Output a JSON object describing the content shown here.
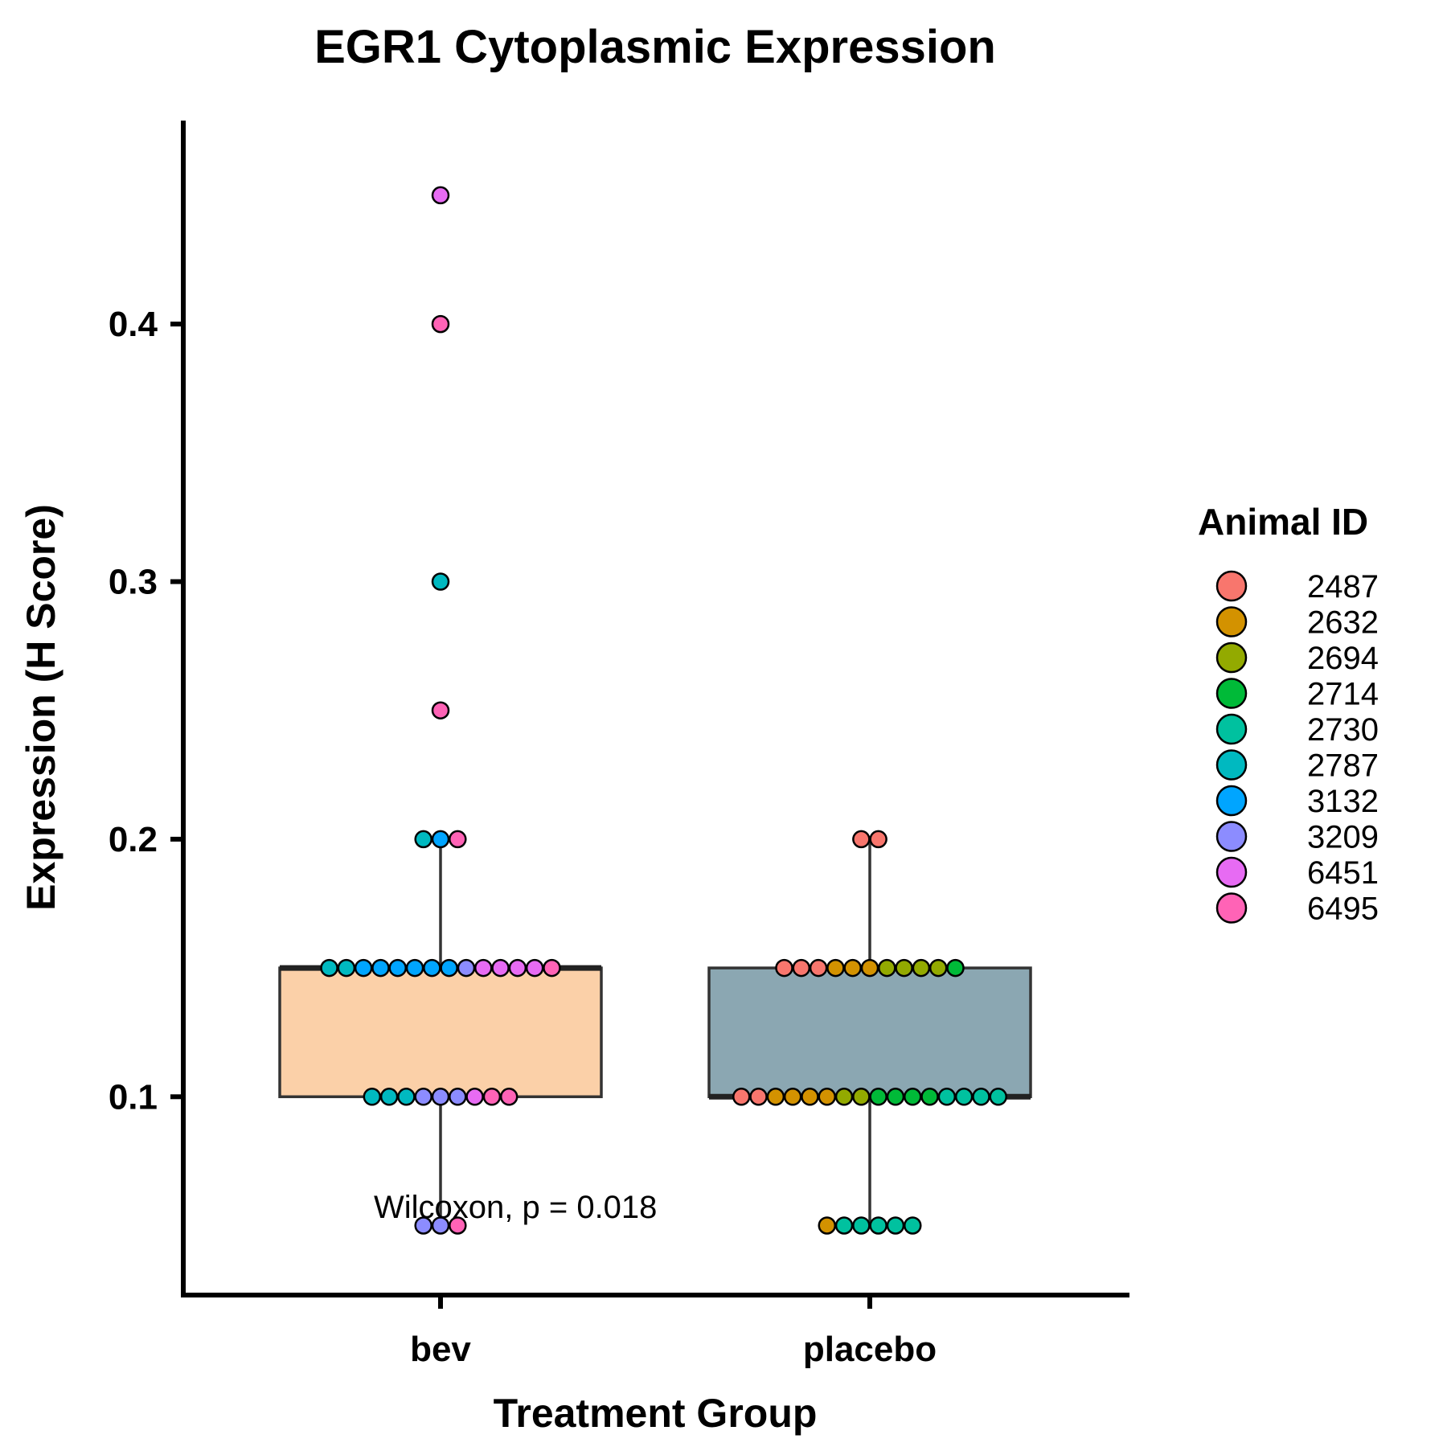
{
  "chart_data": {
    "type": "box",
    "title": "EGR1 Cytoplasmic Expression",
    "xlabel": "Treatment Group",
    "ylabel": "Expression (H Score)",
    "ylim": [
      0.023,
      0.479
    ],
    "yticks": [
      "0.1",
      "0.2",
      "0.3",
      "0.4"
    ],
    "categories": [
      "bev",
      "placebo"
    ],
    "annotation": "Wilcoxon, p = 0.018",
    "legend": {
      "title": "Animal ID",
      "position": "right",
      "items": [
        {
          "id": "2487",
          "color": "#F8766D"
        },
        {
          "id": "2632",
          "color": "#D39200"
        },
        {
          "id": "2694",
          "color": "#93AA00"
        },
        {
          "id": "2714",
          "color": "#00BA38"
        },
        {
          "id": "2730",
          "color": "#00C19F"
        },
        {
          "id": "2787",
          "color": "#00B9C0"
        },
        {
          "id": "3132",
          "color": "#00A5FF"
        },
        {
          "id": "3209",
          "color": "#8C8CFF"
        },
        {
          "id": "6451",
          "color": "#E76BF3"
        },
        {
          "id": "6495",
          "color": "#FF63B6"
        }
      ]
    },
    "boxes": [
      {
        "group": "bev",
        "fill": "#FBD0A8",
        "q1": 0.1,
        "median": 0.15,
        "q3": 0.15,
        "whisker_low": 0.05,
        "whisker_high": 0.2
      },
      {
        "group": "placebo",
        "fill": "#8BA7B2",
        "q1": 0.1,
        "median": 0.1,
        "q3": 0.15,
        "whisker_low": 0.05,
        "whisker_high": 0.2
      }
    ],
    "points": [
      {
        "group": "bev",
        "y": 0.45,
        "ids": [
          "6451"
        ]
      },
      {
        "group": "bev",
        "y": 0.4,
        "ids": [
          "6495"
        ]
      },
      {
        "group": "bev",
        "y": 0.3,
        "ids": [
          "2787"
        ]
      },
      {
        "group": "bev",
        "y": 0.25,
        "ids": [
          "6495"
        ]
      },
      {
        "group": "bev",
        "y": 0.2,
        "ids": [
          "2787",
          "3132",
          "6495"
        ]
      },
      {
        "group": "bev",
        "y": 0.15,
        "ids": [
          "2787",
          "2787",
          "3132",
          "3132",
          "3132",
          "3132",
          "3132",
          "3132",
          "3209",
          "6451",
          "6451",
          "6451",
          "6451",
          "6495"
        ]
      },
      {
        "group": "bev",
        "y": 0.1,
        "ids": [
          "2787",
          "2787",
          "2787",
          "3209",
          "3209",
          "3209",
          "6451",
          "6495",
          "6495"
        ]
      },
      {
        "group": "bev",
        "y": 0.05,
        "ids": [
          "3209",
          "3209",
          "6495"
        ]
      },
      {
        "group": "placebo",
        "y": 0.2,
        "ids": [
          "2487",
          "2487"
        ]
      },
      {
        "group": "placebo",
        "y": 0.15,
        "ids": [
          "2487",
          "2487",
          "2487",
          "2632",
          "2632",
          "2632",
          "2694",
          "2694",
          "2694",
          "2694",
          "2714"
        ]
      },
      {
        "group": "placebo",
        "y": 0.1,
        "ids": [
          "2487",
          "2487",
          "2632",
          "2632",
          "2632",
          "2632",
          "2694",
          "2694",
          "2714",
          "2714",
          "2714",
          "2714",
          "2730",
          "2730",
          "2730",
          "2730"
        ]
      },
      {
        "group": "placebo",
        "y": 0.05,
        "ids": [
          "2632",
          "2730",
          "2730",
          "2730",
          "2730",
          "2730"
        ]
      }
    ]
  }
}
